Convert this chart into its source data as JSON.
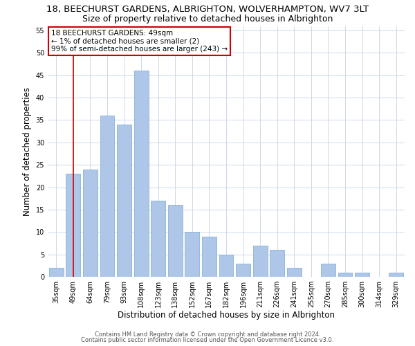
{
  "title": "18, BEECHURST GARDENS, ALBRIGHTON, WOLVERHAMPTON, WV7 3LT",
  "subtitle": "Size of property relative to detached houses in Albrighton",
  "xlabel": "Distribution of detached houses by size in Albrighton",
  "ylabel": "Number of detached properties",
  "categories": [
    "35sqm",
    "49sqm",
    "64sqm",
    "79sqm",
    "93sqm",
    "108sqm",
    "123sqm",
    "138sqm",
    "152sqm",
    "167sqm",
    "182sqm",
    "196sqm",
    "211sqm",
    "226sqm",
    "241sqm",
    "255sqm",
    "270sqm",
    "285sqm",
    "300sqm",
    "314sqm",
    "329sqm"
  ],
  "values": [
    2,
    23,
    24,
    36,
    34,
    46,
    17,
    16,
    10,
    9,
    5,
    3,
    7,
    6,
    2,
    0,
    3,
    1,
    1,
    0,
    1
  ],
  "bar_color": "#aec6e8",
  "bar_edge_color": "#7aaad0",
  "highlight_index": 1,
  "highlight_color": "#cc0000",
  "annotation_text": "18 BEECHURST GARDENS: 49sqm\n← 1% of detached houses are smaller (2)\n99% of semi-detached houses are larger (243) →",
  "annotation_box_color": "#ffffff",
  "annotation_box_edge_color": "#cc0000",
  "ylim": [
    0,
    56
  ],
  "yticks": [
    0,
    5,
    10,
    15,
    20,
    25,
    30,
    35,
    40,
    45,
    50,
    55
  ],
  "footer1": "Contains HM Land Registry data © Crown copyright and database right 2024.",
  "footer2": "Contains public sector information licensed under the Open Government Licence v3.0.",
  "bg_color": "#ffffff",
  "grid_color": "#ccd9e8",
  "title_fontsize": 9.5,
  "subtitle_fontsize": 9,
  "tick_fontsize": 7,
  "ylabel_fontsize": 8.5,
  "xlabel_fontsize": 8.5,
  "annotation_fontsize": 7.5,
  "footer_fontsize": 6
}
